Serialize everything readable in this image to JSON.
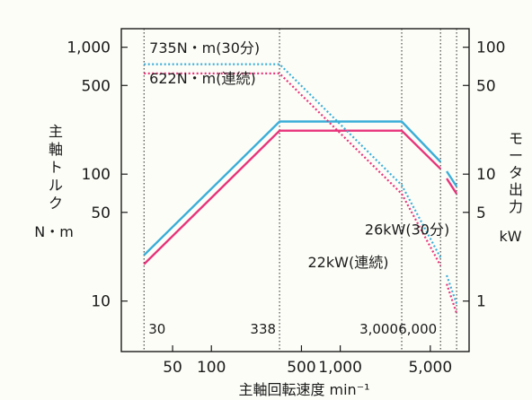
{
  "chart_data": {
    "type": "line",
    "x_scale": "log",
    "y_scale": "log",
    "xlim": [
      20,
      10000
    ],
    "ylim_left": [
      4,
      1400
    ],
    "ylim_right": [
      0.4,
      140
    ],
    "xlabel": "主軸回転速度 min⁻¹",
    "ylabel_left_lines": [
      "主",
      "軸",
      "ト",
      "ル",
      "ク",
      "N・m"
    ],
    "ylabel_right_lines": [
      "モ",
      "ー",
      "タ",
      "出",
      "力",
      "kW"
    ],
    "x_ticks": [
      {
        "value": 50,
        "label": "50"
      },
      {
        "value": 100,
        "label": "100"
      },
      {
        "value": 500,
        "label": "500"
      },
      {
        "value": 1000,
        "label": "1,000"
      },
      {
        "value": 5000,
        "label": "5,000"
      }
    ],
    "y_ticks_left": [
      {
        "value": 1000,
        "label": "1,000"
      },
      {
        "value": 500,
        "label": "500"
      },
      {
        "value": 100,
        "label": "100"
      },
      {
        "value": 50,
        "label": "50"
      },
      {
        "value": 10,
        "label": "10"
      }
    ],
    "y_ticks_right": [
      {
        "value": 100,
        "label": "100"
      },
      {
        "value": 50,
        "label": "50"
      },
      {
        "value": 10,
        "label": "10"
      },
      {
        "value": 5,
        "label": "5"
      },
      {
        "value": 1,
        "label": "1"
      }
    ],
    "vertical_markers": [
      {
        "value": 30,
        "label": "30"
      },
      {
        "value": 338,
        "label": "338"
      },
      {
        "value": 3000,
        "label": "3,000"
      },
      {
        "value": 6000,
        "label": "6,000"
      },
      {
        "value": 8000,
        "label": ""
      }
    ],
    "series": [
      {
        "name": "26kW(30分)",
        "axis": "right",
        "style": "solid",
        "color": "#3aaed8",
        "points": [
          [
            30,
            2.3
          ],
          [
            338,
            26
          ],
          [
            3000,
            26
          ],
          [
            6000,
            12.5
          ],
          [
            8000,
            8
          ]
        ]
      },
      {
        "name": "22kW(連続)",
        "axis": "right",
        "style": "solid",
        "color": "#e8337a",
        "points": [
          [
            30,
            1.95
          ],
          [
            338,
            22
          ],
          [
            3000,
            22
          ],
          [
            6000,
            11
          ],
          [
            8000,
            7
          ]
        ]
      },
      {
        "name": "735N・m(30分)",
        "axis": "left",
        "style": "dotted",
        "color": "#3aaed8",
        "points": [
          [
            30,
            735
          ],
          [
            338,
            735
          ],
          [
            3000,
            82
          ],
          [
            6000,
            22
          ],
          [
            8000,
            9.5
          ]
        ]
      },
      {
        "name": "622N・m(連続)",
        "axis": "left",
        "style": "dotted",
        "color": "#e8337a",
        "points": [
          [
            30,
            622
          ],
          [
            338,
            622
          ],
          [
            3000,
            70
          ],
          [
            6000,
            19
          ],
          [
            8000,
            8
          ]
        ]
      }
    ],
    "breaks": [
      6000,
      6700
    ],
    "annotations": [
      {
        "text": "735N・m(30分)",
        "x": 33,
        "y": 900
      },
      {
        "text": "622N・m(連続)",
        "x": 33,
        "y": 520
      },
      {
        "text": "26kW(30分)",
        "x": 1550,
        "y": 33.5
      },
      {
        "text": "22kW(連続)",
        "x": 560,
        "y": 18.5
      }
    ]
  }
}
